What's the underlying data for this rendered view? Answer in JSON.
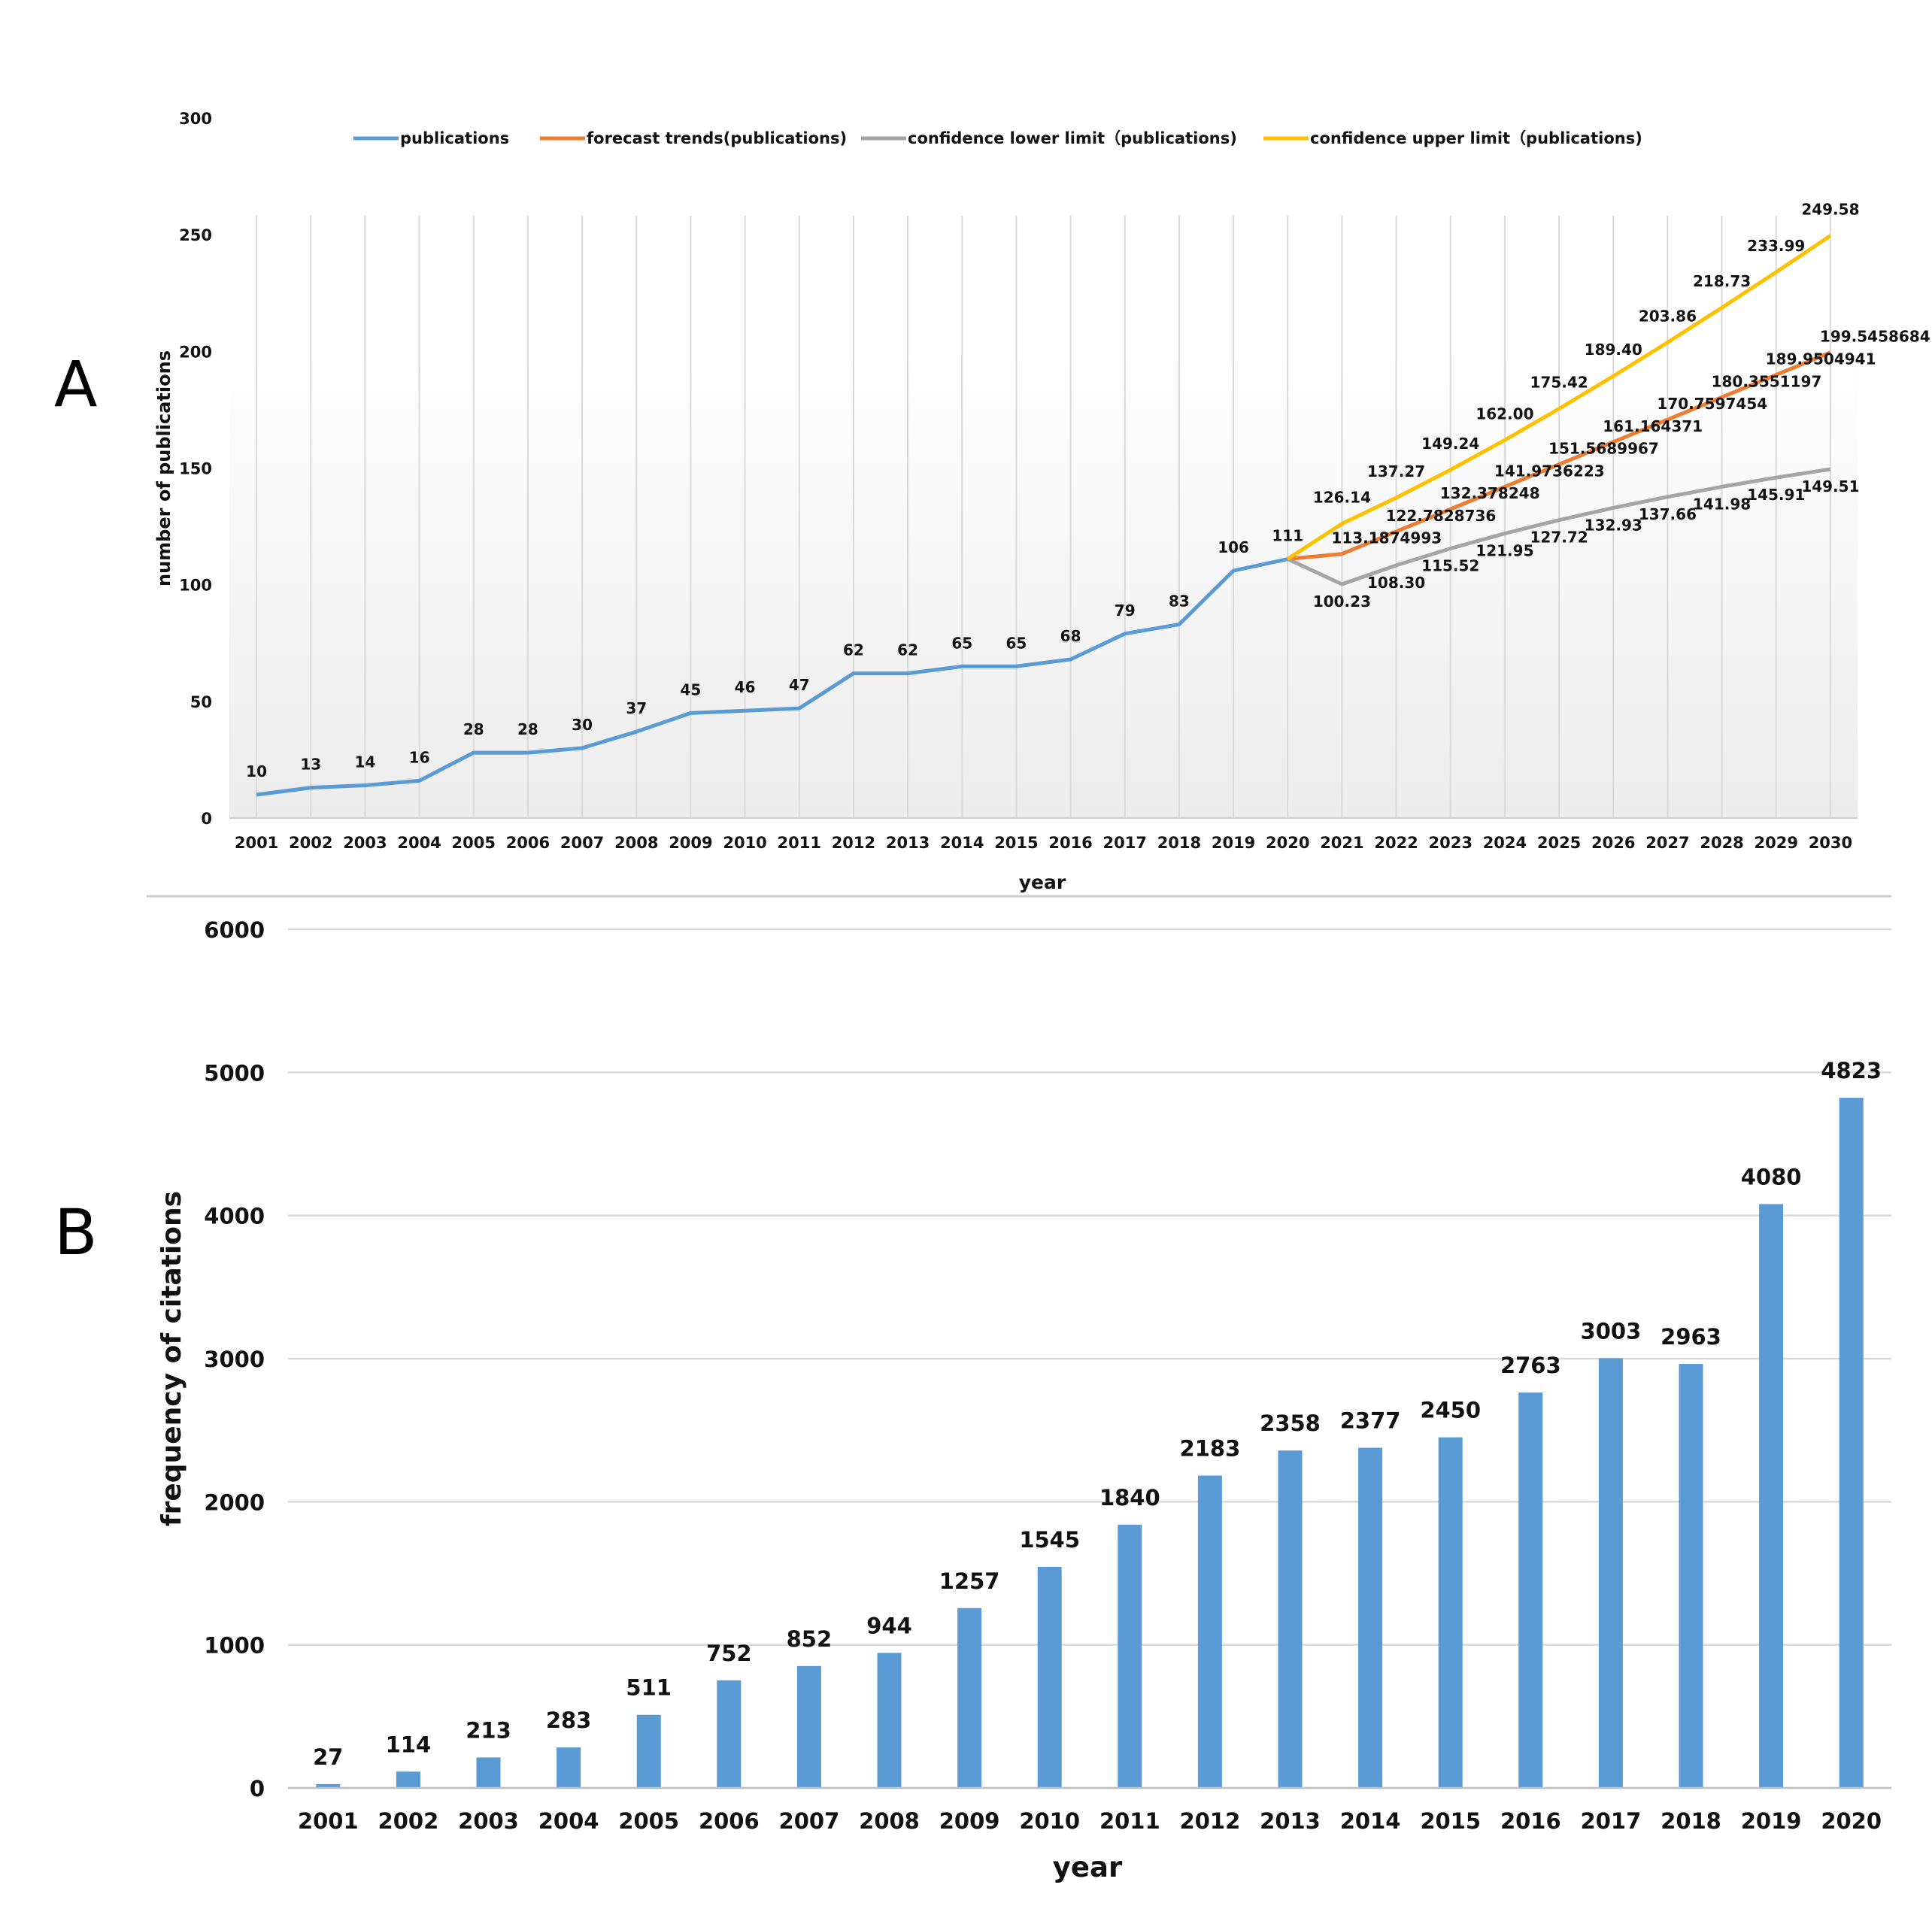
{
  "panels": {
    "a": "A",
    "b": "B"
  },
  "chart_data": [
    {
      "type": "line",
      "panel": "A",
      "title": "",
      "xlabel": "year",
      "ylabel": "number of publications",
      "ylim": [
        0,
        300
      ],
      "yticks": [
        0,
        50,
        100,
        150,
        200,
        250,
        300
      ],
      "grid": "vertical",
      "legend_position": "top",
      "x": [
        "2001",
        "2002",
        "2003",
        "2004",
        "2005",
        "2006",
        "2007",
        "2008",
        "2009",
        "2010",
        "2011",
        "2012",
        "2013",
        "2014",
        "2015",
        "2016",
        "2017",
        "2018",
        "2019",
        "2020",
        "2021",
        "2022",
        "2023",
        "2024",
        "2025",
        "2026",
        "2027",
        "2028",
        "2029",
        "2030"
      ],
      "series": [
        {
          "name": "publications",
          "color": "#5B9BD5",
          "x": [
            "2001",
            "2002",
            "2003",
            "2004",
            "2005",
            "2006",
            "2007",
            "2008",
            "2009",
            "2010",
            "2011",
            "2012",
            "2013",
            "2014",
            "2015",
            "2016",
            "2017",
            "2018",
            "2019",
            "2020"
          ],
          "values": [
            10,
            13,
            14,
            16,
            28,
            28,
            30,
            37,
            45,
            46,
            47,
            62,
            62,
            65,
            65,
            68,
            79,
            83,
            106,
            111
          ],
          "labels": [
            "10",
            "13",
            "14",
            "16",
            "28",
            "28",
            "30",
            "37",
            "45",
            "46",
            "47",
            "62",
            "62",
            "65",
            "65",
            "68",
            "79",
            "83",
            "106",
            "111"
          ]
        },
        {
          "name": "forecast trends(publications)",
          "color": "#ED7D31",
          "x": [
            "2020",
            "2021",
            "2022",
            "2023",
            "2024",
            "2025",
            "2026",
            "2027",
            "2028",
            "2029",
            "2030"
          ],
          "values": [
            111,
            113.1874993,
            122.7828736,
            132.378248,
            141.9736223,
            151.5689967,
            161.164371,
            170.7597454,
            180.3551197,
            189.9504941,
            199.5458684
          ],
          "labels": [
            "",
            "113.1874993",
            "122.7828736",
            "132.378248",
            "141.9736223",
            "151.5689967",
            "161.164371",
            "170.7597454",
            "180.3551197",
            "189.9504941",
            "199.5458684"
          ]
        },
        {
          "name": "confidence lower limit（publications)",
          "color": "#A5A5A5",
          "x": [
            "2020",
            "2021",
            "2022",
            "2023",
            "2024",
            "2025",
            "2026",
            "2027",
            "2028",
            "2029",
            "2030"
          ],
          "values": [
            111,
            100.23,
            108.3,
            115.52,
            121.95,
            127.72,
            132.93,
            137.66,
            141.98,
            145.91,
            149.51
          ],
          "labels": [
            "",
            "100.23",
            "108.30",
            "115.52",
            "121.95",
            "127.72",
            "132.93",
            "137.66",
            "141.98",
            "145.91",
            "149.51"
          ]
        },
        {
          "name": "confidence upper limit（publications)",
          "color": "#FFC000",
          "x": [
            "2020",
            "2021",
            "2022",
            "2023",
            "2024",
            "2025",
            "2026",
            "2027",
            "2028",
            "2029",
            "2030"
          ],
          "values": [
            111,
            126.14,
            137.27,
            149.24,
            162.0,
            175.42,
            189.4,
            203.86,
            218.73,
            233.99,
            249.58
          ],
          "labels": [
            "",
            "126.14",
            "137.27",
            "149.24",
            "162.00",
            "175.42",
            "189.40",
            "203.86",
            "218.73",
            "233.99",
            "249.58"
          ]
        }
      ]
    },
    {
      "type": "bar",
      "panel": "B",
      "title": "",
      "xlabel": "year",
      "ylabel": "frequency of citations",
      "ylim": [
        0,
        6000
      ],
      "yticks": [
        0,
        1000,
        2000,
        3000,
        4000,
        5000,
        6000
      ],
      "grid": "horizontal",
      "color": "#5B9BD5",
      "categories": [
        "2001",
        "2002",
        "2003",
        "2004",
        "2005",
        "2006",
        "2007",
        "2008",
        "2009",
        "2010",
        "2011",
        "2012",
        "2013",
        "2014",
        "2015",
        "2016",
        "2017",
        "2018",
        "2019",
        "2020"
      ],
      "values": [
        27,
        114,
        213,
        283,
        511,
        752,
        852,
        944,
        1257,
        1545,
        1840,
        2183,
        2358,
        2377,
        2450,
        2763,
        3003,
        2963,
        4080,
        4823
      ],
      "labels": [
        "27",
        "114",
        "213",
        "283",
        "511",
        "752",
        "852",
        "944",
        "1257",
        "1545",
        "1840",
        "2183",
        "2358",
        "2377",
        "2450",
        "2763",
        "3003",
        "2963",
        "4080",
        "4823"
      ]
    }
  ]
}
